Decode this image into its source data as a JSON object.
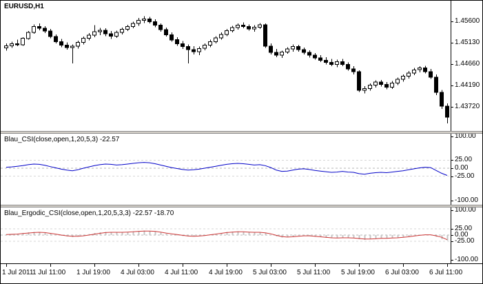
{
  "price_panel": {
    "symbol_label": "EURUSD,H1",
    "axis_tick_labels": [
      "1.45600",
      "1.45130",
      "1.44660",
      "1.44190",
      "1.43720"
    ]
  },
  "indicator1": {
    "label": "Blau_CSI(close,open,1,20,5,3) -22.57",
    "axis_tick_labels": [
      "100.00",
      "25.00",
      "0.00",
      "-25.00",
      "-100.00"
    ]
  },
  "indicator2": {
    "label": "Blau_Ergodic_CSI(close,open,1,20,5,3,3) -22.57 -18.70",
    "axis_tick_labels": [
      "100.00",
      "25.00",
      "0.00",
      "-25.00",
      "-100.00"
    ]
  },
  "time_axis": {
    "labels": [
      "1 Jul 2011",
      "1 Jul 11:00",
      "1 Jul 19:00",
      "4 Jul 03:00",
      "4 Jul 11:00",
      "4 Jul 19:00",
      "5 Jul 03:00",
      "5 Jul 11:00",
      "5 Jul 19:00",
      "6 Jul 03:00",
      "6 Jul 11:00"
    ]
  },
  "colors": {
    "background": "#ffffff",
    "foreground": "#000000",
    "grid": "#d6d6d6",
    "zero_line": "#b4b4b4",
    "csi_line": "#0000c8",
    "ergodic_line": "#cc3333",
    "histogram": "#c4c4c4",
    "splitter": "#d4d0c8"
  },
  "chart_data": [
    {
      "type": "candlestick",
      "name": "EURUSD H1 price",
      "y_ticks": [
        1.456,
        1.4513,
        1.4466,
        1.4419,
        1.4372
      ],
      "ohlc": [
        [
          1.4502,
          1.4512,
          1.4496,
          1.4507
        ],
        [
          1.4507,
          1.4516,
          1.4502,
          1.4511
        ],
        [
          1.4511,
          1.452,
          1.4506,
          1.4509
        ],
        [
          1.4509,
          1.4526,
          1.4507,
          1.4523
        ],
        [
          1.4523,
          1.4539,
          1.452,
          1.4536
        ],
        [
          1.4536,
          1.4554,
          1.4533,
          1.4549
        ],
        [
          1.4549,
          1.4556,
          1.4541,
          1.4545
        ],
        [
          1.4545,
          1.455,
          1.4535,
          1.4539
        ],
        [
          1.4539,
          1.4544,
          1.4523,
          1.4527
        ],
        [
          1.4527,
          1.4532,
          1.4512,
          1.4516
        ],
        [
          1.4516,
          1.4522,
          1.4504,
          1.4508
        ],
        [
          1.4508,
          1.4514,
          1.4498,
          1.4503
        ],
        [
          1.4503,
          1.451,
          1.4468,
          1.4506
        ],
        [
          1.4506,
          1.4518,
          1.4501,
          1.4514
        ],
        [
          1.4514,
          1.4527,
          1.451,
          1.4523
        ],
        [
          1.4523,
          1.4535,
          1.4519,
          1.453
        ],
        [
          1.453,
          1.4552,
          1.4526,
          1.4538
        ],
        [
          1.4538,
          1.4546,
          1.453,
          1.4541
        ],
        [
          1.4541,
          1.4545,
          1.4528,
          1.4533
        ],
        [
          1.4533,
          1.4539,
          1.4522,
          1.4528
        ],
        [
          1.4528,
          1.454,
          1.4524,
          1.4536
        ],
        [
          1.4536,
          1.4547,
          1.4532,
          1.4543
        ],
        [
          1.4543,
          1.4553,
          1.4539,
          1.4549
        ],
        [
          1.4549,
          1.456,
          1.4545,
          1.4556
        ],
        [
          1.4556,
          1.4568,
          1.4551,
          1.4563
        ],
        [
          1.4563,
          1.4572,
          1.4557,
          1.4566
        ],
        [
          1.4566,
          1.457,
          1.4556,
          1.456
        ],
        [
          1.456,
          1.4565,
          1.4548,
          1.4552
        ],
        [
          1.4552,
          1.4556,
          1.4538,
          1.4542
        ],
        [
          1.4542,
          1.4547,
          1.4527,
          1.4531
        ],
        [
          1.4531,
          1.4536,
          1.4516,
          1.452
        ],
        [
          1.452,
          1.4526,
          1.4507,
          1.4511
        ],
        [
          1.4511,
          1.4517,
          1.45,
          1.4505
        ],
        [
          1.4505,
          1.451,
          1.4468,
          1.4498
        ],
        [
          1.4498,
          1.4506,
          1.4488,
          1.4494
        ],
        [
          1.4494,
          1.4505,
          1.4486,
          1.4501
        ],
        [
          1.4501,
          1.4512,
          1.4497,
          1.4508
        ],
        [
          1.4508,
          1.452,
          1.4504,
          1.4516
        ],
        [
          1.4516,
          1.4528,
          1.4512,
          1.4524
        ],
        [
          1.4524,
          1.4536,
          1.452,
          1.4532
        ],
        [
          1.4532,
          1.4544,
          1.4528,
          1.454
        ],
        [
          1.454,
          1.4551,
          1.4536,
          1.4547
        ],
        [
          1.4547,
          1.4556,
          1.4542,
          1.4552
        ],
        [
          1.4552,
          1.4558,
          1.4545,
          1.4549
        ],
        [
          1.4549,
          1.4554,
          1.454,
          1.4544
        ],
        [
          1.4544,
          1.4552,
          1.4538,
          1.4548
        ],
        [
          1.4548,
          1.4557,
          1.4544,
          1.4553
        ],
        [
          1.4553,
          1.4556,
          1.4502,
          1.4506
        ],
        [
          1.4506,
          1.4512,
          1.4488,
          1.4492
        ],
        [
          1.4492,
          1.45,
          1.4482,
          1.4486
        ],
        [
          1.4486,
          1.4496,
          1.448,
          1.4493
        ],
        [
          1.4493,
          1.4504,
          1.4489,
          1.45
        ],
        [
          1.45,
          1.451,
          1.4494,
          1.4505
        ],
        [
          1.4505,
          1.4509,
          1.4494,
          1.4498
        ],
        [
          1.4498,
          1.4503,
          1.4488,
          1.4492
        ],
        [
          1.4492,
          1.4497,
          1.4481,
          1.4486
        ],
        [
          1.4486,
          1.4491,
          1.4476,
          1.448
        ],
        [
          1.448,
          1.4486,
          1.4471,
          1.4475
        ],
        [
          1.4475,
          1.4482,
          1.4466,
          1.447
        ],
        [
          1.447,
          1.4478,
          1.4462,
          1.4466
        ],
        [
          1.4466,
          1.4476,
          1.446,
          1.4472
        ],
        [
          1.4472,
          1.4478,
          1.4462,
          1.4466
        ],
        [
          1.4466,
          1.447,
          1.4452,
          1.4456
        ],
        [
          1.4456,
          1.4462,
          1.4444,
          1.445
        ],
        [
          1.445,
          1.4453,
          1.4405,
          1.4409
        ],
        [
          1.4409,
          1.4418,
          1.4402,
          1.4413
        ],
        [
          1.4413,
          1.4424,
          1.4408,
          1.442
        ],
        [
          1.442,
          1.4431,
          1.4415,
          1.4427
        ],
        [
          1.4427,
          1.4432,
          1.4417,
          1.4422
        ],
        [
          1.4422,
          1.4427,
          1.4411,
          1.4416
        ],
        [
          1.4416,
          1.4429,
          1.4412,
          1.4425
        ],
        [
          1.4425,
          1.4437,
          1.442,
          1.4433
        ],
        [
          1.4433,
          1.4444,
          1.4428,
          1.444
        ],
        [
          1.444,
          1.4451,
          1.4435,
          1.4447
        ],
        [
          1.4447,
          1.4458,
          1.4442,
          1.4454
        ],
        [
          1.4454,
          1.4462,
          1.4448,
          1.4458
        ],
        [
          1.4458,
          1.4463,
          1.4446,
          1.445
        ],
        [
          1.445,
          1.4456,
          1.4434,
          1.4438
        ],
        [
          1.4438,
          1.4444,
          1.4398,
          1.4404
        ],
        [
          1.4404,
          1.441,
          1.4368,
          1.4374
        ],
        [
          1.4374,
          1.438,
          1.4336,
          1.435
        ]
      ]
    },
    {
      "type": "line",
      "name": "Blau_CSI(close,open,1,20,5,3)",
      "current_value": -22.57,
      "ylim": [
        -100,
        100
      ],
      "y_ticks": [
        100,
        25,
        0,
        -25,
        -100
      ],
      "color": "#0000c8",
      "values": [
        3,
        4,
        6,
        8,
        11,
        13,
        12,
        9,
        5,
        1,
        -3,
        -6,
        -8,
        -5,
        0,
        4,
        8,
        11,
        13,
        12,
        10,
        11,
        13,
        15,
        17,
        18,
        17,
        14,
        10,
        6,
        2,
        -1,
        -4,
        -6,
        -5,
        -3,
        0,
        3,
        6,
        9,
        12,
        14,
        15,
        14,
        12,
        10,
        11,
        8,
        2,
        -6,
        -10,
        -9,
        -6,
        -3,
        -2,
        -4,
        -7,
        -9,
        -11,
        -13,
        -12,
        -10,
        -12,
        -13,
        -17,
        -19,
        -16,
        -14,
        -13,
        -14,
        -12,
        -10,
        -8,
        -5,
        -2,
        1,
        3,
        2,
        -7,
        -16,
        -22.57
      ]
    },
    {
      "type": "line+histogram",
      "name": "Blau_Ergodic_CSI(close,open,1,20,5,3,3)",
      "current_values": [
        -22.57,
        -18.7
      ],
      "ylim": [
        -100,
        100
      ],
      "y_ticks": [
        100,
        25,
        0,
        -25,
        -100
      ],
      "line_color": "#cc3333",
      "histogram_color": "#c4c4c4",
      "histogram": [
        3,
        4,
        6,
        8,
        11,
        13,
        12,
        9,
        5,
        1,
        -3,
        -6,
        -8,
        -5,
        0,
        4,
        8,
        11,
        13,
        12,
        10,
        11,
        13,
        15,
        17,
        18,
        17,
        14,
        10,
        6,
        2,
        -1,
        -4,
        -6,
        -5,
        -3,
        0,
        3,
        6,
        9,
        12,
        14,
        15,
        14,
        12,
        10,
        11,
        8,
        2,
        -6,
        -10,
        -9,
        -6,
        -3,
        -2,
        -4,
        -7,
        -9,
        -11,
        -13,
        -12,
        -10,
        -12,
        -13,
        -17,
        -19,
        -16,
        -14,
        -13,
        -14,
        -12,
        -10,
        -8,
        -5,
        -2,
        1,
        3,
        2,
        -7,
        -16,
        -22.57
      ],
      "signal": [
        2,
        3,
        4,
        6,
        8,
        10,
        11,
        10,
        7,
        4,
        0,
        -3,
        -5,
        -5,
        -3,
        0,
        4,
        7,
        10,
        11,
        11,
        11,
        12,
        13,
        15,
        16,
        16,
        15,
        12,
        8,
        5,
        2,
        -1,
        -4,
        -5,
        -4,
        -2,
        1,
        4,
        7,
        10,
        12,
        13,
        13,
        12,
        11,
        11,
        9,
        5,
        -1,
        -6,
        -8,
        -7,
        -5,
        -3,
        -3,
        -5,
        -7,
        -9,
        -11,
        -12,
        -11,
        -11,
        -12,
        -14,
        -16,
        -16,
        -15,
        -13,
        -13,
        -12,
        -11,
        -9,
        -7,
        -4,
        -1,
        1,
        1,
        -3,
        -9,
        -18.7
      ]
    }
  ]
}
